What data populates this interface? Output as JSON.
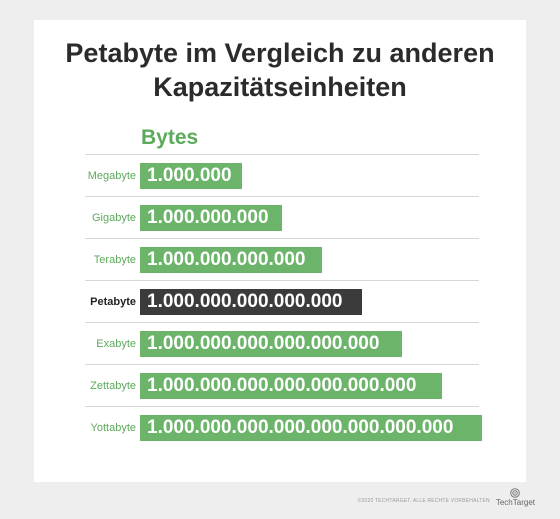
{
  "title_line1": "Petabyte im Vergleich zu anderen",
  "title_line2": "Kapazitätseinheiten",
  "column_header": "Bytes",
  "chart_data": {
    "type": "bar",
    "orientation": "horizontal",
    "categories": [
      "Megabyte",
      "Gigabyte",
      "Terabyte",
      "Petabyte",
      "Exabyte",
      "Zettabyte",
      "Yottabyte"
    ],
    "value_labels": [
      "1.000.000",
      "1.000.000.000",
      "1.000.000.000.000",
      "1.000.000.000.000.000",
      "1.000.000.000.000.000.000",
      "1.000.000.000.000.000.000.000",
      "1.000.000.000.000.000.000.000.000"
    ],
    "values": [
      1000000.0,
      1000000000.0,
      1000000000000.0,
      1000000000000000.0,
      1e+18,
      1e+21,
      1e+24
    ],
    "highlight": "Petabyte",
    "colors": {
      "bar": "#6cb46a",
      "highlight_bar": "#3b3b3b",
      "label": "#5daa5c",
      "highlight_label": "#222222"
    }
  },
  "footer": {
    "copyright": "©2020 TECHTARGET. ALLE RECHTE VORBEHALTEN",
    "brand": "TechTarget",
    "brand_icon": "techtarget-target-icon"
  }
}
